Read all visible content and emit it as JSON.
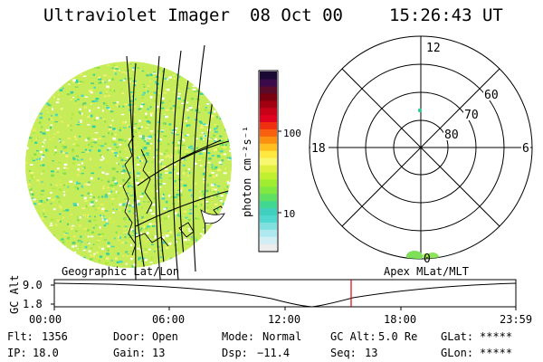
{
  "header": {
    "title": "Ultraviolet Imager",
    "date": "08 Oct 00",
    "time": "15:26:43 UT"
  },
  "colorbar": {
    "unit_label": "photon cm⁻²s⁻¹",
    "ticks": [
      "100",
      "10"
    ],
    "colors": [
      "#1a0a33",
      "#3a0a4a",
      "#5a0a2a",
      "#7a0010",
      "#a00010",
      "#c80018",
      "#e00020",
      "#f03010",
      "#f86010",
      "#fb9010",
      "#ffc020",
      "#ffe840",
      "#f8f870",
      "#e0f040",
      "#c0f030",
      "#a0ec30",
      "#80e840",
      "#60e060",
      "#40d890",
      "#40d0c0",
      "#50d8d0",
      "#80e0e0",
      "#b0e8f0",
      "#d0eef4",
      "#ececec"
    ]
  },
  "polar": {
    "label_top": "12",
    "label_left": "18",
    "label_right": "6",
    "label_bottom": "0",
    "lat_labels": [
      "60",
      "70",
      "80"
    ]
  },
  "bottom_panel": {
    "left_label": "Geographic Lat/Lon",
    "right_label": "Apex MLat/MLT",
    "axis_label": "GC Alt",
    "y_ticks": [
      "9.0",
      "1.8"
    ],
    "x_ticks": [
      "00:00",
      "06:00",
      "12:00",
      "18:00",
      "23:59"
    ]
  },
  "status": {
    "row1": [
      {
        "key": "Flt:",
        "value": "1356"
      },
      {
        "key": "Door:",
        "value": "Open"
      },
      {
        "key": "Mode:",
        "value": "Normal"
      },
      {
        "key": "GC Alt:",
        "value": "5.0 Re"
      },
      {
        "key": "GLat:",
        "value": "*****"
      }
    ],
    "row2": [
      {
        "key": "IP:",
        "value": "18.0"
      },
      {
        "key": "Gain:",
        "value": "13"
      },
      {
        "key": "Dsp:",
        "value": "−11.4"
      },
      {
        "key": "Seq:",
        "value": "13"
      },
      {
        "key": "GLon:",
        "value": "*****"
      }
    ]
  }
}
